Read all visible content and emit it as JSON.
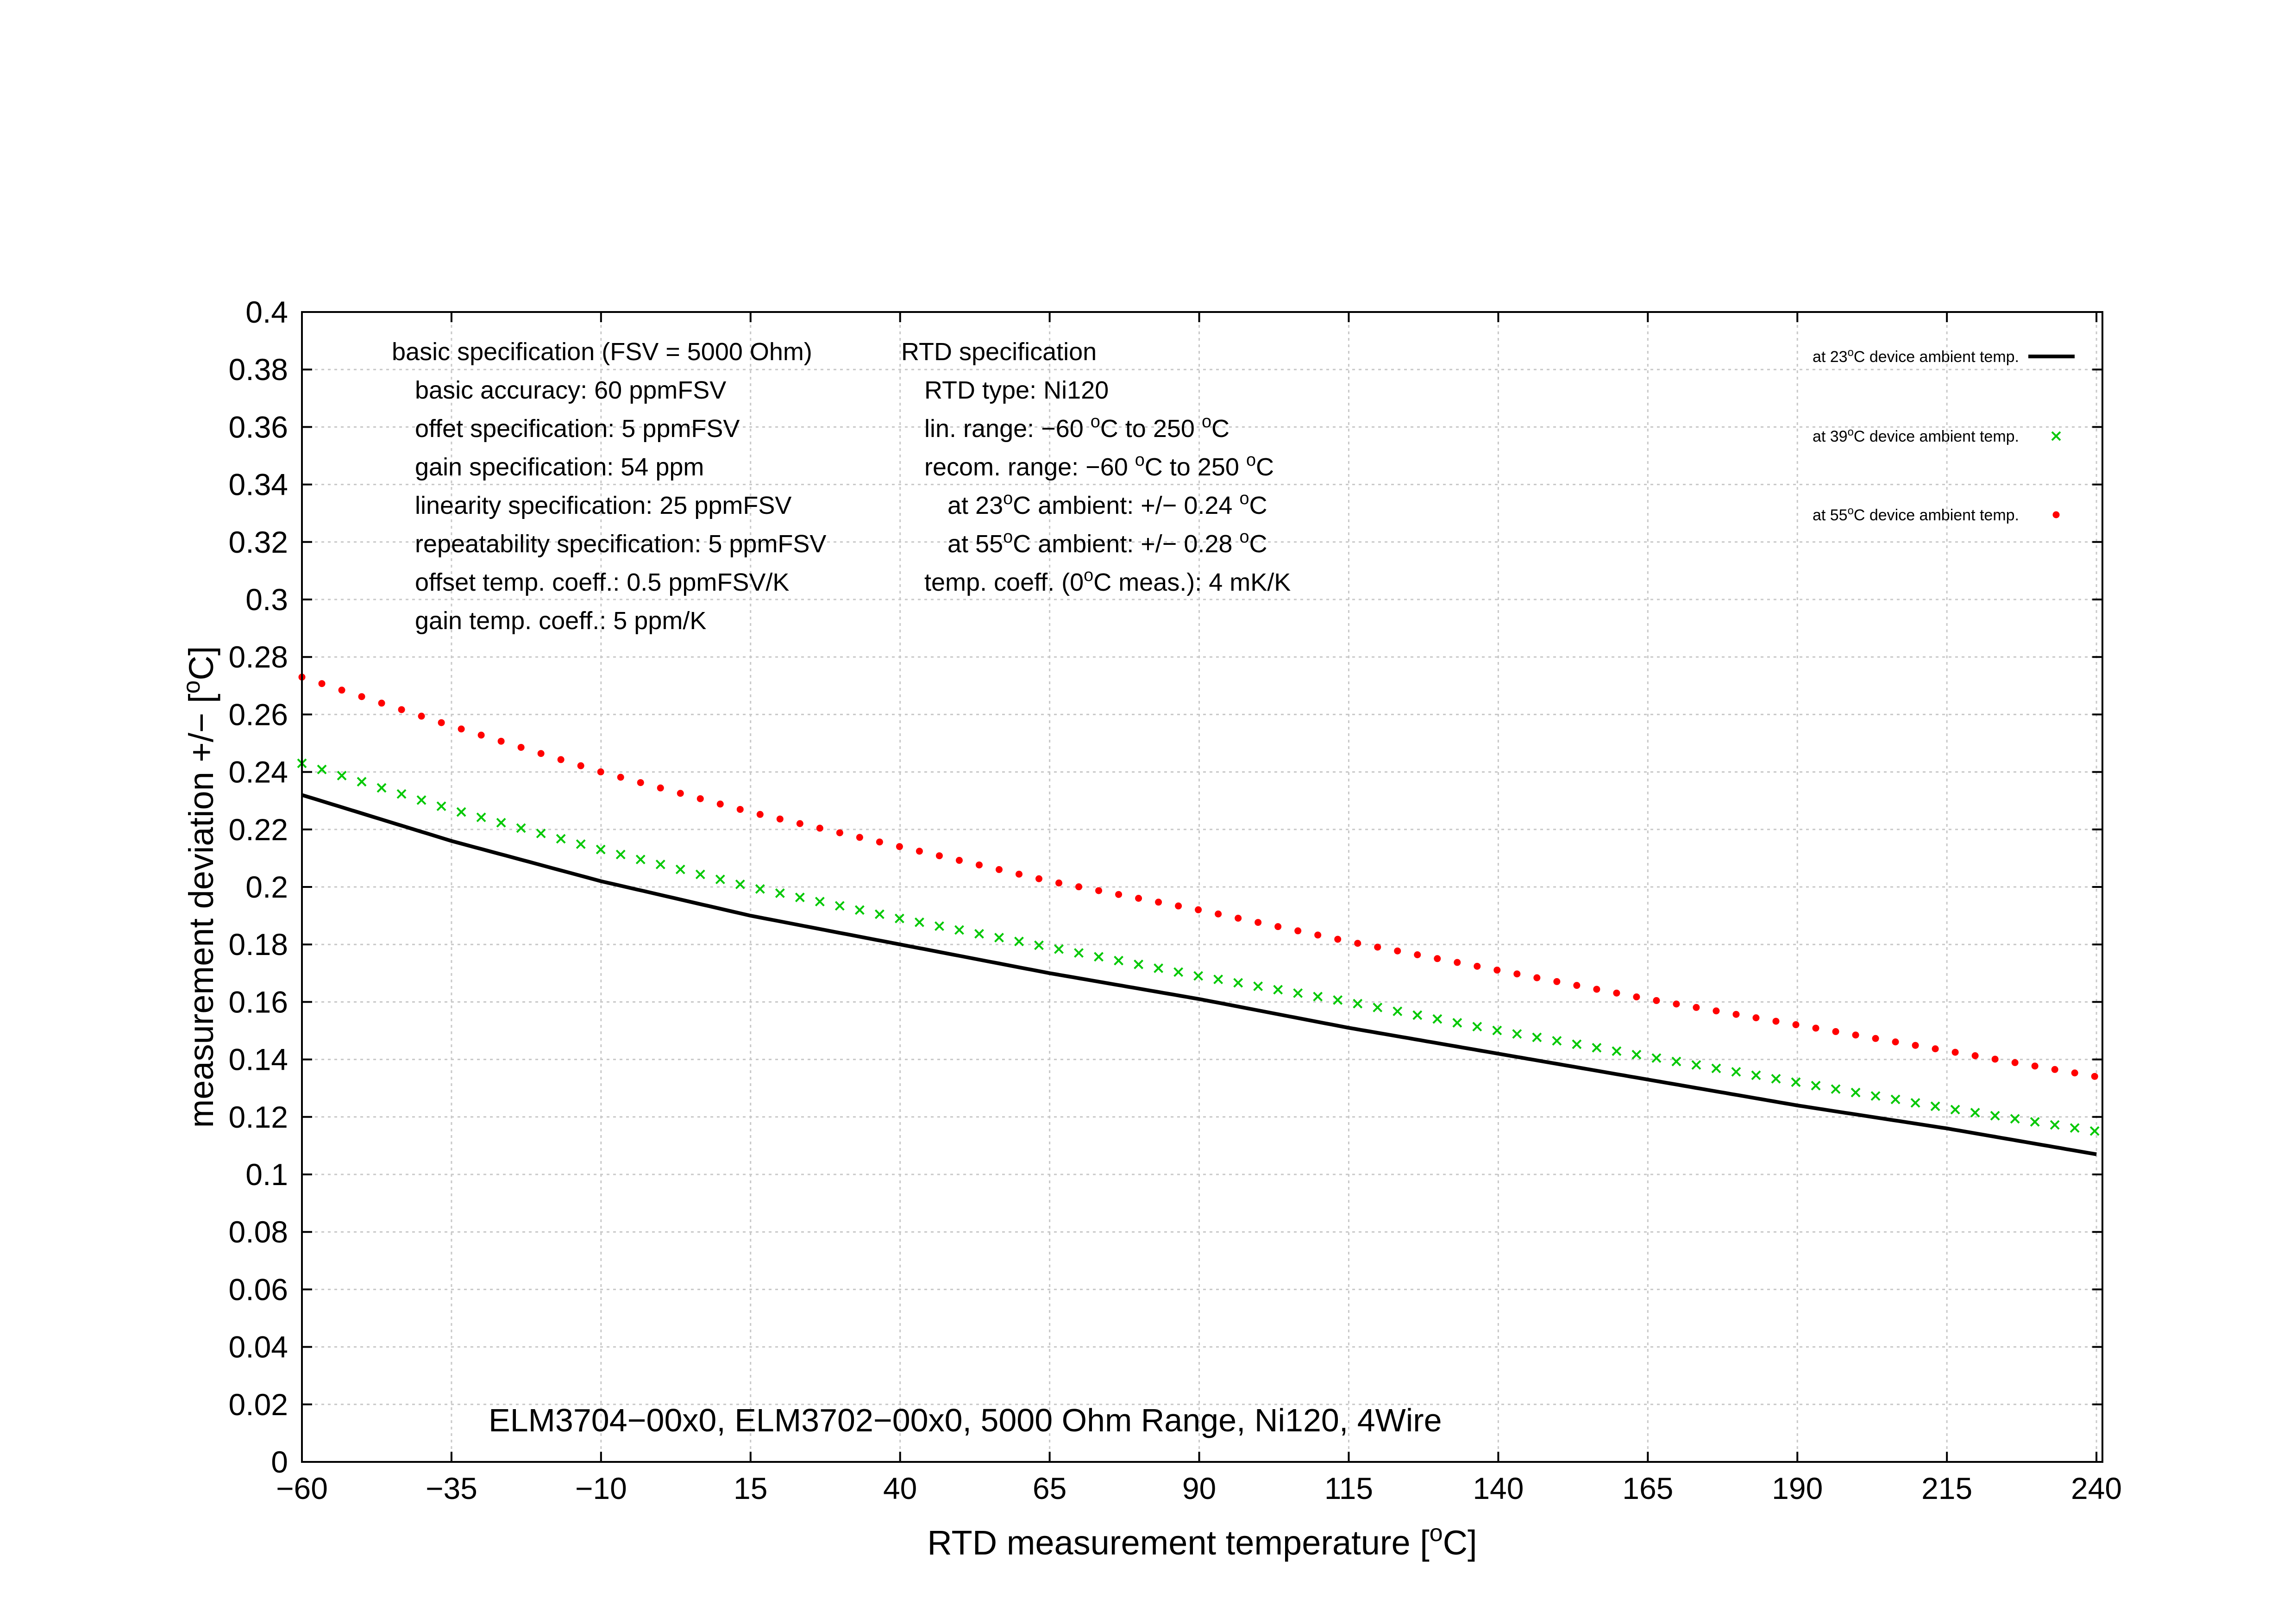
{
  "chart_data": {
    "type": "line",
    "title": "ELM3704−00x0, ELM3702−00x0, 5000 Ohm Range, Ni120, 4Wire",
    "xlabel": {
      "pre": "RTD measurement temperature [",
      "sup": "o",
      "post": "C]"
    },
    "ylabel": {
      "pre": "measurement deviation +/− [",
      "sup": "o",
      "post": "C]"
    },
    "xlim": [
      -60,
      241
    ],
    "ylim": [
      0,
      0.4
    ],
    "grid": true,
    "legend_position": "top-right",
    "x_ticks": [
      -60,
      -35,
      -10,
      15,
      40,
      65,
      90,
      115,
      140,
      165,
      190,
      215,
      240
    ],
    "x_tick_labels": [
      "−60",
      "−35",
      "−10",
      "15",
      "40",
      "65",
      "90",
      "115",
      "140",
      "165",
      "190",
      "215",
      "240"
    ],
    "y_ticks": [
      0,
      0.02,
      0.04,
      0.06,
      0.08,
      0.1,
      0.12,
      0.14,
      0.16,
      0.18,
      0.2,
      0.22,
      0.24,
      0.26,
      0.28,
      0.3,
      0.32,
      0.34,
      0.36,
      0.38,
      0.4
    ],
    "y_tick_labels": [
      "0",
      "0.02",
      "0.04",
      "0.06",
      "0.08",
      "0.1",
      "0.12",
      "0.14",
      "0.16",
      "0.18",
      "0.2",
      "0.22",
      "0.24",
      "0.26",
      "0.28",
      "0.3",
      "0.32",
      "0.34",
      "0.36",
      "0.38",
      "0.4"
    ],
    "series": [
      {
        "legend": {
          "pre": "at 23",
          "sup": "o",
          "post": "C device ambient temp."
        },
        "style": "line",
        "color": "#000000",
        "x": [
          -60,
          -35,
          -10,
          15,
          40,
          65,
          90,
          115,
          140,
          165,
          190,
          215,
          240
        ],
        "y": [
          0.232,
          0.216,
          0.202,
          0.19,
          0.18,
          0.17,
          0.161,
          0.151,
          0.142,
          0.133,
          0.124,
          0.116,
          0.107
        ]
      },
      {
        "legend": {
          "pre": "at 39",
          "sup": "o",
          "post": "C device ambient temp."
        },
        "style": "cross",
        "color": "#00c800",
        "x": [
          -60,
          -35,
          -10,
          15,
          40,
          65,
          90,
          115,
          140,
          165,
          190,
          215,
          240
        ],
        "y": [
          0.243,
          0.227,
          0.213,
          0.2,
          0.189,
          0.179,
          0.169,
          0.16,
          0.15,
          0.141,
          0.132,
          0.123,
          0.115
        ]
      },
      {
        "legend": {
          "pre": "at 55",
          "sup": "o",
          "post": "C device ambient temp."
        },
        "style": "dot",
        "color": "#ff0000",
        "x": [
          -60,
          -35,
          -10,
          15,
          40,
          65,
          90,
          115,
          140,
          165,
          190,
          215,
          240
        ],
        "y": [
          0.273,
          0.256,
          0.24,
          0.226,
          0.214,
          0.202,
          0.192,
          0.181,
          0.171,
          0.161,
          0.152,
          0.143,
          0.134
        ]
      }
    ],
    "annotations": {
      "basic": [
        {
          "pre": "basic specification (FSV = 5000 Ohm)"
        },
        {
          "pre": "basic accuracy: 60 ppmFSV"
        },
        {
          "pre": "offet specification: 5 ppmFSV"
        },
        {
          "pre": "gain specification: 54 ppm"
        },
        {
          "pre": "linearity specification: 25 ppmFSV"
        },
        {
          "pre": "repeatability specification: 5 ppmFSV"
        },
        {
          "pre": "offset temp. coeff.: 0.5 ppmFSV/K"
        },
        {
          "pre": "gain temp. coeff.: 5 ppm/K"
        }
      ],
      "rtd": [
        {
          "pre": "RTD specification"
        },
        {
          "pre": "RTD type: Ni120"
        },
        {
          "pre": "lin. range: −60 ",
          "sup": "o",
          "post": "C to 250 ",
          "sup2": "o",
          "post2": "C"
        },
        {
          "pre": "recom. range: −60 ",
          "sup": "o",
          "post": "C to 250 ",
          "sup2": "o",
          "post2": "C"
        },
        {
          "pre": "at 23",
          "sup": "o",
          "post": "C ambient: +/− 0.24 ",
          "sup2": "o",
          "post2": "C"
        },
        {
          "pre": "at 55",
          "sup": "o",
          "post": "C ambient: +/− 0.28 ",
          "sup2": "o",
          "post2": "C"
        },
        {
          "pre": "temp. coeff. (0",
          "sup": "o",
          "post": "C meas.): 4 mK/K"
        }
      ]
    }
  }
}
